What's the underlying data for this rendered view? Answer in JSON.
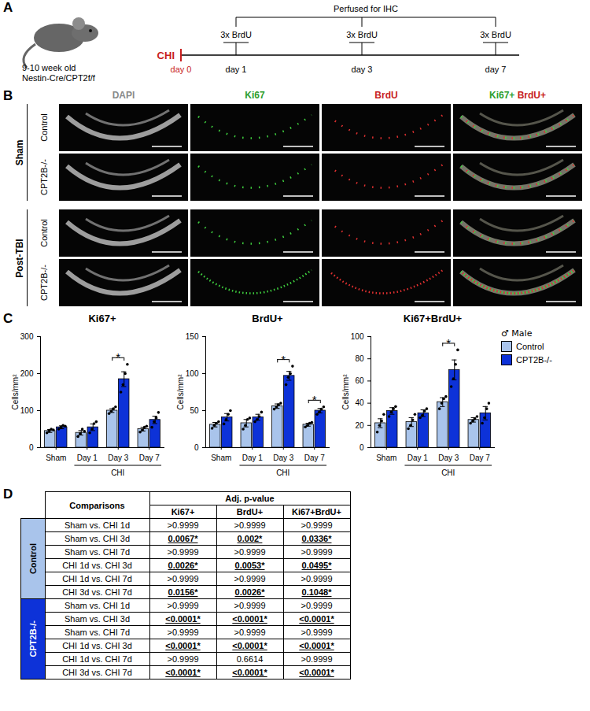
{
  "panel_letters": [
    "A",
    "B",
    "C",
    "D"
  ],
  "schematic": {
    "age_label": "9-10 week old",
    "strain": "Nestin-Cre/CPT2f/f",
    "injury": "CHI",
    "injury_day": "day 0",
    "injection": "3x BrdU",
    "timepoints": [
      "day 1",
      "day 3",
      "day 7"
    ],
    "endpoint": "Perfused for IHC"
  },
  "images": {
    "columns": [
      [
        {
          "text": "DAPI",
          "color": "#8a8a8a"
        }
      ],
      [
        {
          "text": "Ki67",
          "color": "#2e9e2e"
        }
      ],
      [
        {
          "text": "BrdU",
          "color": "#c81e1e"
        }
      ],
      [
        {
          "text": "Ki67+",
          "color": "#2e9e2e"
        },
        {
          "text": "BrdU+",
          "color": "#c81e1e"
        }
      ]
    ],
    "groups": [
      {
        "name": "Sham",
        "rows": [
          "Control",
          "CPT2B-/-"
        ]
      },
      {
        "name": "Post-TBI",
        "rows": [
          "Control",
          "CPT2B-/-"
        ]
      }
    ]
  },
  "legend_title": "♂ Male",
  "chart_data": [
    {
      "type": "bar",
      "title": "Ki67+",
      "ylabel": "Cells/mm²",
      "categories": [
        "Sham",
        "Day 1",
        "Day 3",
        "Day 7"
      ],
      "category_group": {
        "label": "CHI",
        "categories": [
          "Day 1",
          "Day 3",
          "Day 7"
        ]
      },
      "ylim": [
        0,
        300
      ],
      "yticks": [
        0,
        100,
        200,
        300
      ],
      "series": [
        {
          "name": "Control",
          "color": "#a9c4eb",
          "values": [
            45,
            40,
            100,
            50
          ],
          "errors": [
            4,
            6,
            5,
            5
          ],
          "points": [
            [
              40,
              45,
              50,
              48
            ],
            [
              30,
              38,
              50,
              44
            ],
            [
              92,
              98,
              105,
              110
            ],
            [
              42,
              48,
              55,
              58
            ]
          ]
        },
        {
          "name": "CPT2B-/-",
          "color": "#0d32d8",
          "values": [
            55,
            55,
            185,
            75
          ],
          "errors": [
            4,
            9,
            20,
            10
          ],
          "points": [
            [
              50,
              55,
              60,
              58
            ],
            [
              40,
              50,
              65,
              70
            ],
            [
              150,
              170,
              200,
              225
            ],
            [
              55,
              70,
              80,
              95
            ]
          ]
        }
      ],
      "significance": [
        {
          "category": "Day 3",
          "label": "*"
        }
      ]
    },
    {
      "type": "bar",
      "title": "BrdU+",
      "ylabel": "Cells/mm²",
      "categories": [
        "Sham",
        "Day 1",
        "Day 3",
        "Day 7"
      ],
      "category_group": {
        "label": "CHI",
        "categories": [
          "Day 1",
          "Day 3",
          "Day 7"
        ]
      },
      "ylim": [
        0,
        150
      ],
      "yticks": [
        0,
        50,
        100,
        150
      ],
      "series": [
        {
          "name": "Control",
          "color": "#a9c4eb",
          "values": [
            31,
            33,
            56,
            31
          ],
          "errors": [
            3,
            5,
            3,
            2
          ],
          "points": [
            [
              26,
              30,
              33,
              35
            ],
            [
              25,
              30,
              38,
              40
            ],
            [
              52,
              55,
              58,
              60
            ],
            [
              28,
              30,
              33,
              34
            ]
          ]
        },
        {
          "name": "CPT2B-/-",
          "color": "#0d32d8",
          "values": [
            41,
            41,
            97,
            50
          ],
          "errors": [
            5,
            4,
            6,
            3
          ],
          "points": [
            [
              32,
              38,
              45,
              50
            ],
            [
              35,
              38,
              42,
              48
            ],
            [
              85,
              95,
              100,
              110
            ],
            [
              45,
              48,
              52,
              55
            ]
          ]
        }
      ],
      "significance": [
        {
          "category": "Day 3",
          "label": "*"
        },
        {
          "category": "Day 7",
          "label": "*"
        }
      ]
    },
    {
      "type": "bar",
      "title": "Ki67+BrdU+",
      "ylabel": "Cells/mm²",
      "categories": [
        "Sham",
        "Day 1",
        "Day 3",
        "Day 7"
      ],
      "category_group": {
        "label": "CHI",
        "categories": [
          "Day 1",
          "Day 3",
          "Day 7"
        ]
      },
      "ylim": [
        0,
        100
      ],
      "yticks": [
        0,
        20,
        40,
        60,
        80,
        100
      ],
      "legend": "right",
      "series": [
        {
          "name": "Control",
          "color": "#a9c4eb",
          "values": [
            22,
            23,
            41,
            25
          ],
          "errors": [
            4,
            4,
            4,
            2
          ],
          "points": [
            [
              14,
              20,
              24,
              30
            ],
            [
              17,
              20,
              25,
              30
            ],
            [
              35,
              40,
              44,
              46
            ],
            [
              22,
              24,
              26,
              28
            ]
          ]
        },
        {
          "name": "CPT2B-/-",
          "color": "#0d32d8",
          "values": [
            33,
            31,
            70,
            31
          ],
          "errors": [
            3,
            3,
            9,
            6
          ],
          "points": [
            [
              28,
              32,
              35,
              37
            ],
            [
              27,
              29,
              33,
              35
            ],
            [
              55,
              62,
              75,
              88
            ],
            [
              22,
              27,
              35,
              40
            ]
          ]
        }
      ],
      "significance": [
        {
          "category": "Day 3",
          "label": "*"
        }
      ]
    }
  ],
  "table": {
    "header": {
      "comparisons": "Comparisons",
      "pvalue": "Adj. p-value"
    },
    "columns": [
      "Ki67+",
      "BrdU+",
      "Ki67+BrdU+"
    ],
    "groups": [
      {
        "name": "Control",
        "color": "#a9c4eb",
        "rows": [
          [
            "Sham vs. CHI 1d",
            ">0.9999",
            ">0.9999",
            ">0.9999"
          ],
          [
            "Sham vs. CHI 3d",
            "0.0067*",
            "0.002*",
            "0.0336*"
          ],
          [
            "Sham vs. CHI 7d",
            ">0.9999",
            ">0.9999",
            ">0.9999"
          ],
          [
            "CHI 1d vs. CHI 3d",
            "0.0026*",
            "0.0053*",
            "0.0495*"
          ],
          [
            "CHI 1d vs. CHI 7d",
            ">0.9999",
            ">0.9999",
            ">0.9999"
          ],
          [
            "CHI 3d vs. CHI 7d",
            "0.0156*",
            "0.0026*",
            "0.1048*"
          ]
        ]
      },
      {
        "name": "CPT2B-/-",
        "color": "#0d32d8",
        "rows": [
          [
            "Sham vs. CHI 1d",
            ">0.9999",
            ">0.9999",
            ">0.9999"
          ],
          [
            "Sham vs. CHI 3d",
            "<0.0001*",
            "<0.0001*",
            "<0.0001*"
          ],
          [
            "Sham vs. CHI 7d",
            ">0.9999",
            ">0.9999",
            ">0.9999"
          ],
          [
            "CHI 1d vs. CHI 3d",
            "<0.0001*",
            "<0.0001*",
            "<0.0001*"
          ],
          [
            "CHI 1d vs. CHI 7d",
            ">0.9999",
            "0.6614",
            ">0.9999"
          ],
          [
            "CHI 3d vs. CHI 7d",
            "<0.0001*",
            "<0.0001*",
            "<0.0001*"
          ]
        ]
      }
    ]
  }
}
